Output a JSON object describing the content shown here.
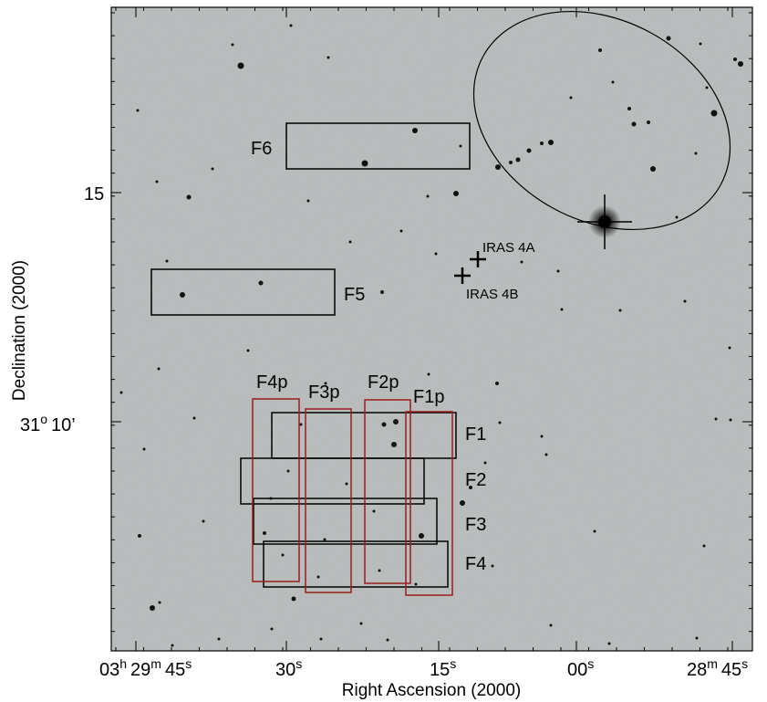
{
  "figure": {
    "xlabel": "Right Ascension (2000)",
    "ylabel": "Declination (2000)",
    "x_ticks": [
      {
        "h": "03",
        "hs": "h",
        "m": "29",
        "ms": "m",
        "s": "45",
        "ss": "s"
      },
      {
        "s": "30",
        "ss": "s"
      },
      {
        "s": "15",
        "ss": "s"
      },
      {
        "s": "00",
        "ss": "s"
      },
      {
        "m": "28",
        "ms": "m",
        "s": "45",
        "ss": "s"
      }
    ],
    "y_ticks": [
      {
        "text": "15"
      },
      {
        "deg": "31",
        "degsym": "o",
        "arc": "10’"
      }
    ],
    "markers": [
      {
        "label": "IRAS 4A"
      },
      {
        "label": "IRAS 4B"
      }
    ],
    "fields_black": [
      {
        "label": "F6"
      },
      {
        "label": "F5"
      },
      {
        "label": "F1"
      },
      {
        "label": "F2"
      },
      {
        "label": "F3"
      },
      {
        "label": "F4"
      }
    ],
    "fields_red": [
      {
        "label": "F4p"
      },
      {
        "label": "F3p"
      },
      {
        "label": "F2p"
      },
      {
        "label": "F1p"
      }
    ],
    "colors": {
      "sky": "#b9bcbd",
      "frame": "#000000",
      "field_black": "#000000",
      "field_red": "#9b1c1c",
      "star": "#111111"
    }
  }
}
